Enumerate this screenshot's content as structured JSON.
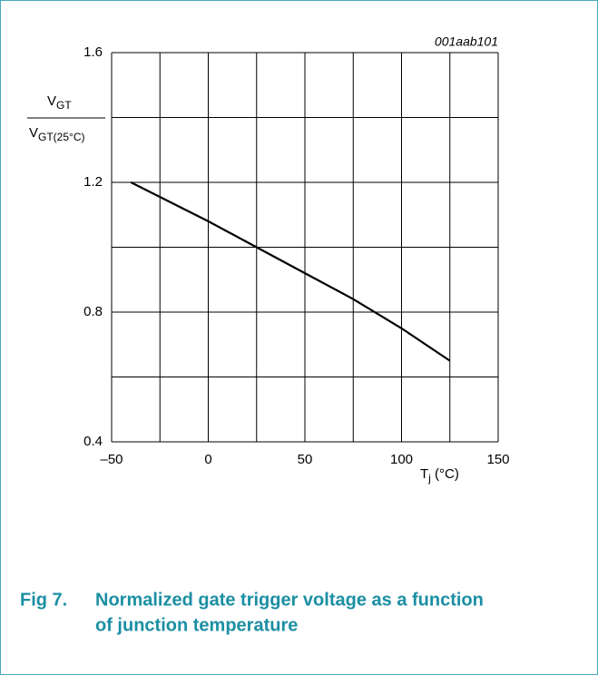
{
  "chart_data": {
    "type": "line",
    "title": "001aab101",
    "ylabel": {
      "numerator": {
        "main": "V",
        "sub": "GT"
      },
      "denominator": {
        "main": "V",
        "sub": "GT(25°C)"
      }
    },
    "xlabel": {
      "main": "T",
      "sub": "j",
      "unit": " (°C)"
    },
    "x": [
      -40,
      0,
      25,
      50,
      75,
      100,
      125
    ],
    "series": [
      {
        "name": "VGT/VGT(25°C)",
        "color": "#000000",
        "values": [
          1.2,
          1.08,
          1.0,
          0.92,
          0.84,
          0.75,
          0.65
        ]
      }
    ],
    "xlim": [
      -50,
      150
    ],
    "xticks": [
      {
        "value": -50,
        "label": "–50"
      },
      0,
      50,
      100,
      150
    ],
    "xminor": [
      -25,
      25,
      75,
      125
    ],
    "ylim": [
      0.4,
      1.6
    ],
    "yticks": [
      0.4,
      0.8,
      1.2,
      1.6
    ],
    "yminor": [
      0.6,
      1.0,
      1.4
    ],
    "grid": true,
    "caption": {
      "number": "Fig 7.",
      "text": [
        "Normalized gate trigger voltage as a function",
        "of junction temperature"
      ]
    }
  }
}
